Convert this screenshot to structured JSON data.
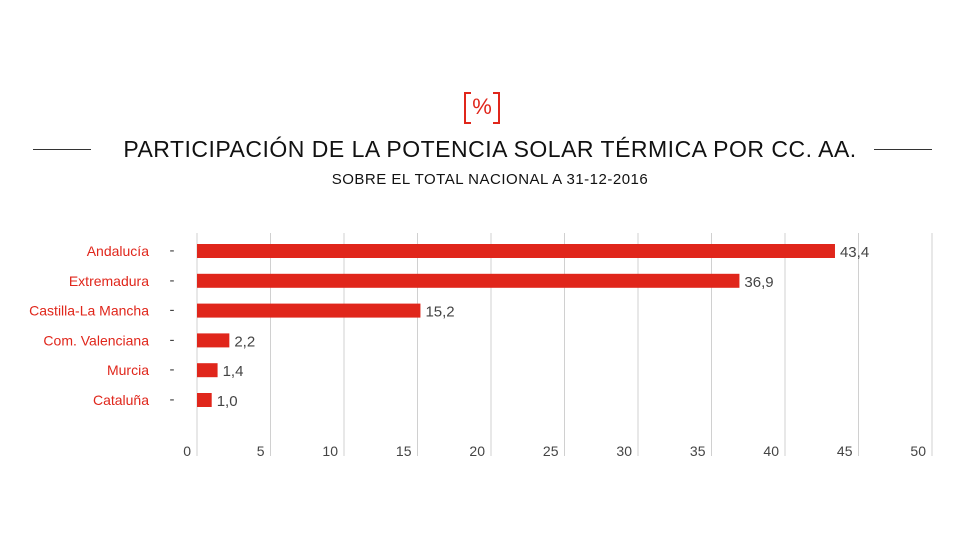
{
  "header": {
    "unit_badge": "%",
    "title": "PARTICIPACIÓN DE LA POTENCIA SOLAR TÉRMICA POR CC. AA.",
    "subtitle": "SOBRE EL TOTAL NACIONAL A 31-12-2016"
  },
  "colors": {
    "bar": "#e0261b",
    "label": "#e0261b",
    "grid": "#d0d0d0"
  },
  "chart_data": {
    "type": "bar",
    "orientation": "horizontal",
    "title": "PARTICIPACIÓN DE LA POTENCIA SOLAR TÉRMICA POR CC. AA.",
    "subtitle": "SOBRE EL TOTAL NACIONAL A 31-12-2016",
    "categories": [
      "Andalucía",
      "Extremadura",
      "Castilla-La Mancha",
      "Com. Valenciana",
      "Murcia",
      "Cataluña"
    ],
    "values": [
      43.4,
      36.9,
      15.2,
      2.2,
      1.4,
      1.0
    ],
    "value_labels": [
      "43,4",
      "36,9",
      "15,2",
      "2,2",
      "1,4",
      "1,0"
    ],
    "xlim": [
      0,
      50
    ],
    "xticks": [
      "0",
      "5",
      "10",
      "15",
      "20",
      "25",
      "30",
      "35",
      "40",
      "45",
      "50"
    ],
    "grid": true
  }
}
